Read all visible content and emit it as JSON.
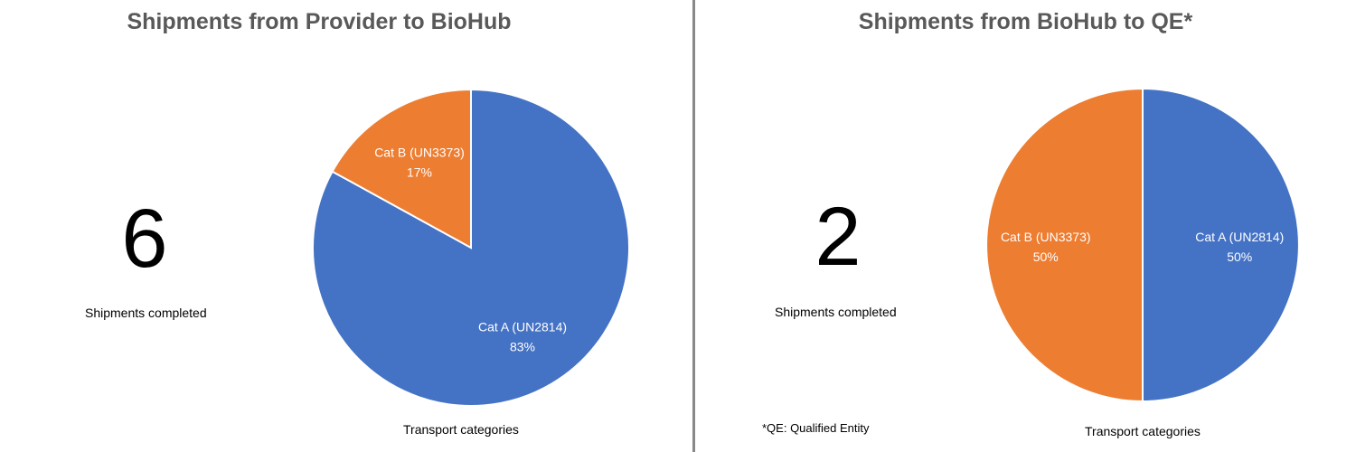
{
  "chart_data": [
    {
      "type": "pie",
      "title": "Shipments from Provider to BioHub",
      "total_value": "6",
      "total_label": "Shipments completed",
      "xlabel": "Transport categories",
      "slices": [
        {
          "label": "Cat A (UN2814)",
          "value": 83,
          "display": "83%",
          "color": "#4472C4"
        },
        {
          "label": "Cat B (UN3373)",
          "value": 17,
          "display": "17%",
          "color": "#ED7D31"
        }
      ]
    },
    {
      "type": "pie",
      "title": "Shipments from BioHub to QE*",
      "total_value": "2",
      "total_label": "Shipments completed",
      "xlabel": "Transport categories",
      "footnote": "*QE: Qualified Entity",
      "slices": [
        {
          "label": "Cat A (UN2814)",
          "value": 50,
          "display": "50%",
          "color": "#4472C4"
        },
        {
          "label": "Cat B (UN3373)",
          "value": 50,
          "display": "50%",
          "color": "#ED7D31"
        }
      ]
    }
  ]
}
